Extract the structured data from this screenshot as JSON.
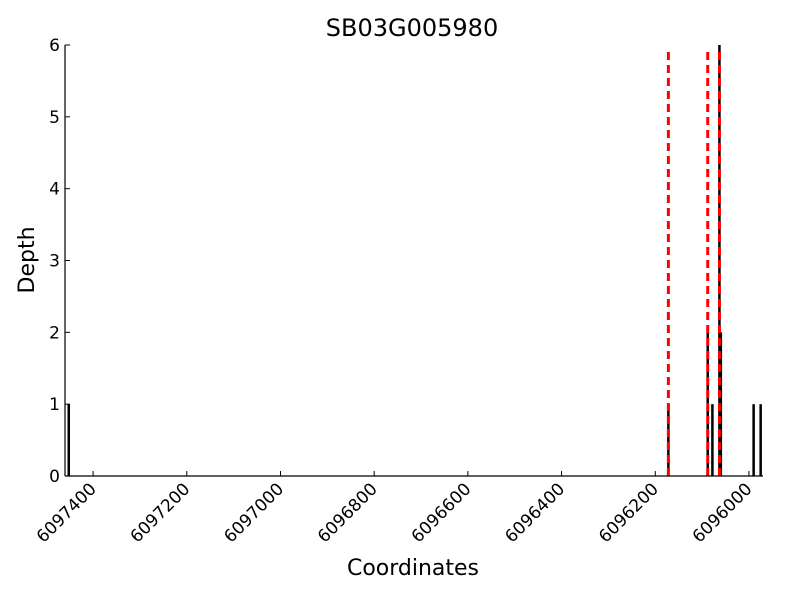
{
  "chart_data": {
    "type": "bar",
    "title": "SB03G005980",
    "xlabel": "Coordinates",
    "ylabel": "Depth",
    "x_reversed": true,
    "xlim": [
      6097460,
      6095970
    ],
    "ylim": [
      0,
      6
    ],
    "xticks": [
      6097400,
      6097200,
      6097000,
      6096800,
      6096600,
      6096400,
      6096200,
      6096000
    ],
    "xtick_labels": [
      "6097400",
      "6097200",
      "6097000",
      "6096800",
      "6096600",
      "6096400",
      "6096200",
      "6096000"
    ],
    "yticks": [
      0,
      1,
      2,
      3,
      4,
      5,
      6
    ],
    "ytick_labels": [
      "0",
      "1",
      "2",
      "3",
      "4",
      "5",
      "6"
    ],
    "grid": false,
    "series": [
      {
        "color": "#000000",
        "points": [
          {
            "x": 6097452,
            "y": 1
          },
          {
            "x": 6096172,
            "y": 1
          },
          {
            "x": 6096088,
            "y": 2
          },
          {
            "x": 6096078,
            "y": 1
          },
          {
            "x": 6096063,
            "y": 6
          },
          {
            "x": 6096060,
            "y": 2
          },
          {
            "x": 6095990,
            "y": 1
          },
          {
            "x": 6095975,
            "y": 1
          }
        ]
      }
    ],
    "vlines": [
      {
        "x": 6096172,
        "color": "#ff0000",
        "style": "dashed"
      },
      {
        "x": 6096088,
        "color": "#ff0000",
        "style": "dashed"
      },
      {
        "x": 6096063,
        "color": "#ff0000",
        "style": "dashed"
      }
    ]
  }
}
